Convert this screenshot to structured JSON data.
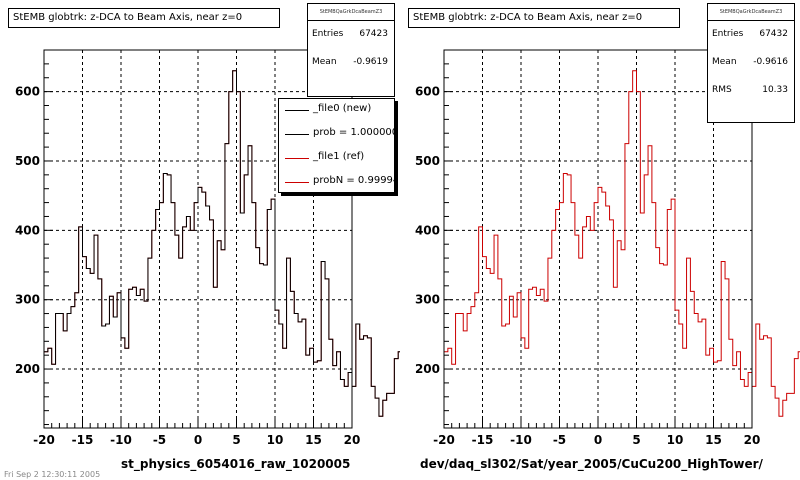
{
  "colors": {
    "file0": "#000000",
    "file1": "#cc0000",
    "grid": "#000000"
  },
  "pads": [
    {
      "title": "StEMB globtrk: z-DCA to Beam Axis, near z=0",
      "stats": {
        "header": "StEMBQaGrkDcaBeamZ3",
        "rows": [
          {
            "k": "Entries",
            "v": "67423"
          },
          {
            "k": "Mean",
            "v": "-0.9619"
          }
        ]
      },
      "xtitle": "st_physics_6054016_raw_1020005",
      "legend": [
        {
          "label": "_file0 (new)",
          "color": "#000000"
        },
        {
          "label": "prob = 1.000000",
          "color": "#000000"
        },
        {
          "label": "_file1 (ref)",
          "color": "#cc0000"
        },
        {
          "label": "probN = 0.999940",
          "color": "#cc0000"
        }
      ]
    },
    {
      "title": "StEMB globtrk: z-DCA to Beam Axis, near z=0",
      "stats": {
        "header": "StEMBQaGrkDcaBeamZ3",
        "rows": [
          {
            "k": "Entries",
            "v": "67432"
          },
          {
            "k": "Mean",
            "v": "-0.9616"
          },
          {
            "k": "RMS",
            "v": "10.33"
          }
        ]
      },
      "xtitle": "dev/daq_sl302/Sat/year_2005/CuCu200_HighTower/"
    }
  ],
  "footnote": "Fri Sep 2 12:30:11 2005",
  "chart_data": [
    {
      "type": "line",
      "xlim": [
        -20,
        20
      ],
      "ylim": [
        115,
        660
      ],
      "xticks": [
        "-20",
        "-15",
        "-10",
        "-5",
        "0",
        "5",
        "10",
        "15",
        "20"
      ],
      "yticks": [
        "200",
        "300",
        "400",
        "500",
        "600"
      ],
      "grid": true,
      "bin_width": 0.5,
      "x_start": -20,
      "series": [
        {
          "name": "_file0 (new)",
          "values": [
            225,
            230,
            207,
            280,
            280,
            255,
            280,
            290,
            310,
            405,
            362,
            345,
            338,
            393,
            330,
            262,
            265,
            305,
            275,
            310,
            245,
            230,
            315,
            318,
            306,
            315,
            298,
            360,
            400,
            430,
            440,
            482,
            480,
            440,
            393,
            360,
            405,
            420,
            400,
            440,
            462,
            455,
            435,
            415,
            318,
            385,
            372,
            525,
            600,
            630,
            600,
            425,
            480,
            522,
            440,
            375,
            352,
            350,
            430,
            445,
            285,
            265,
            230,
            360,
            312,
            280,
            268,
            272,
            220,
            230,
            210,
            212,
            355,
            330,
            243,
            205,
            225,
            185,
            175,
            195,
            175,
            265,
            243,
            248,
            245,
            175,
            158,
            132,
            155,
            165,
            165,
            215,
            225,
            253,
            228,
            185,
            165,
            150
          ]
        },
        {
          "name": "_file1 (ref)",
          "values": [
            225,
            230,
            207,
            280,
            280,
            255,
            280,
            290,
            310,
            405,
            362,
            345,
            338,
            393,
            330,
            262,
            265,
            305,
            275,
            310,
            245,
            230,
            315,
            318,
            306,
            315,
            298,
            360,
            400,
            430,
            440,
            482,
            480,
            440,
            393,
            360,
            405,
            420,
            400,
            440,
            462,
            455,
            435,
            415,
            318,
            385,
            372,
            525,
            600,
            630,
            600,
            425,
            480,
            522,
            440,
            375,
            352,
            350,
            430,
            445,
            285,
            265,
            230,
            360,
            312,
            280,
            268,
            272,
            220,
            230,
            210,
            212,
            355,
            330,
            243,
            205,
            225,
            185,
            175,
            195,
            175,
            265,
            243,
            248,
            245,
            175,
            158,
            132,
            155,
            165,
            165,
            215,
            225,
            253,
            228,
            185,
            165,
            150
          ]
        }
      ]
    },
    {
      "type": "line",
      "xlim": [
        -20,
        20
      ],
      "ylim": [
        115,
        660
      ],
      "xticks": [
        "-20",
        "-15",
        "-10",
        "-5",
        "0",
        "5",
        "10",
        "15",
        "20"
      ],
      "yticks": [
        "200",
        "300",
        "400",
        "500",
        "600"
      ],
      "grid": true,
      "bin_width": 0.5,
      "x_start": -20,
      "series": [
        {
          "values": [
            225,
            230,
            207,
            280,
            280,
            255,
            280,
            290,
            310,
            405,
            362,
            345,
            338,
            393,
            330,
            262,
            265,
            305,
            275,
            310,
            245,
            230,
            315,
            318,
            306,
            315,
            298,
            360,
            400,
            430,
            440,
            482,
            480,
            440,
            393,
            360,
            405,
            420,
            400,
            440,
            462,
            455,
            435,
            415,
            318,
            385,
            372,
            525,
            600,
            630,
            600,
            425,
            480,
            522,
            440,
            375,
            352,
            350,
            430,
            445,
            285,
            265,
            230,
            360,
            312,
            280,
            268,
            272,
            220,
            230,
            210,
            212,
            355,
            330,
            243,
            205,
            225,
            185,
            175,
            195,
            175,
            265,
            243,
            248,
            245,
            175,
            158,
            132,
            155,
            165,
            165,
            215,
            225,
            253,
            228,
            185,
            165,
            150
          ]
        }
      ]
    }
  ]
}
